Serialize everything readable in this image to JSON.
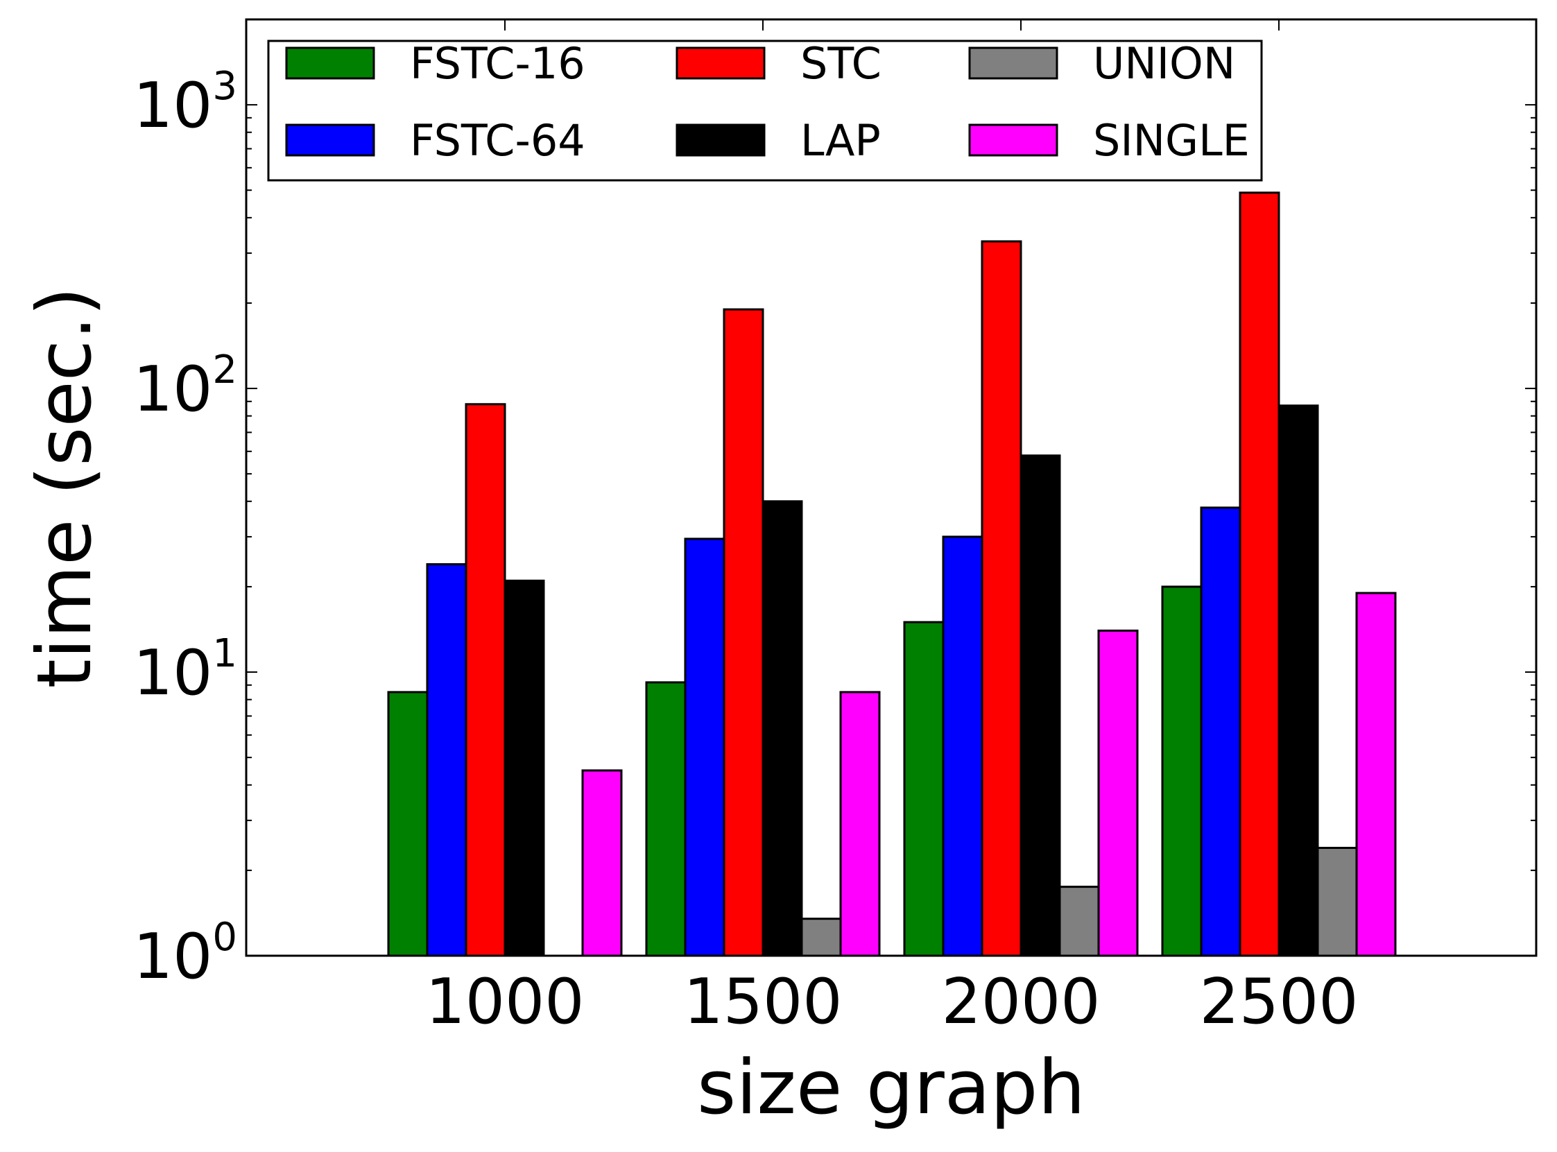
{
  "chart_data": {
    "type": "bar",
    "scale": "log",
    "xlabel": "size graph",
    "ylabel": "time (sec.)",
    "ylim": [
      1,
      2000
    ],
    "yticks": [
      {
        "base": "10",
        "exp": "0",
        "value": 1
      },
      {
        "base": "10",
        "exp": "1",
        "value": 10
      },
      {
        "base": "10",
        "exp": "2",
        "value": 100
      },
      {
        "base": "10",
        "exp": "3",
        "value": 1000
      }
    ],
    "categories": [
      "1000",
      "1500",
      "2000",
      "2500"
    ],
    "series": [
      {
        "name": "FSTC-16",
        "color": "#008000",
        "values": [
          8.5,
          9.2,
          15.0,
          20.0
        ]
      },
      {
        "name": "FSTC-64",
        "color": "#0000ff",
        "values": [
          24.0,
          29.5,
          30.0,
          38.0
        ]
      },
      {
        "name": "STC",
        "color": "#ff0000",
        "values": [
          88.0,
          190.0,
          330.0,
          490.0
        ]
      },
      {
        "name": "LAP",
        "color": "#000000",
        "values": [
          21.0,
          40.0,
          58.0,
          87.0
        ]
      },
      {
        "name": "UNION",
        "color": "#808080",
        "values": [
          null,
          1.35,
          1.75,
          2.4
        ]
      },
      {
        "name": "SINGLE",
        "color": "#ff00ff",
        "values": [
          4.5,
          8.5,
          14.0,
          19.0
        ]
      }
    ],
    "legend_position": "top-left",
    "grid": false
  }
}
